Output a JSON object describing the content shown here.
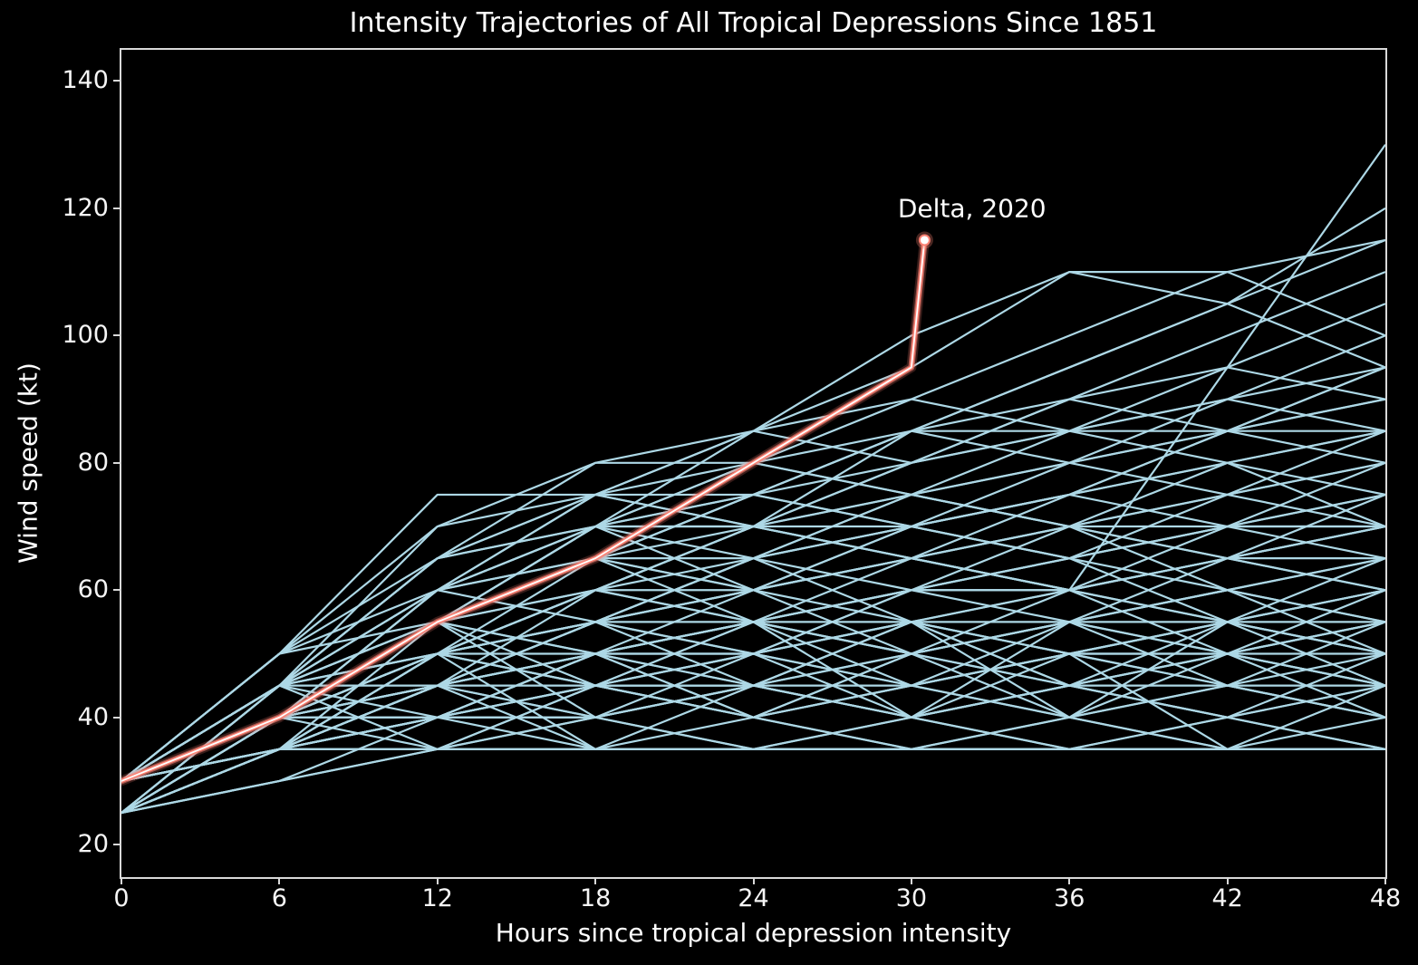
{
  "title": "Intensity Trajectories of All Tropical Depressions Since 1851",
  "chart_data": {
    "type": "line",
    "title": "Intensity Trajectories of All Tropical Depressions Since 1851",
    "xlabel": "Hours since tropical depression intensity",
    "ylabel": "Wind speed (kt)",
    "xlim": [
      0,
      48
    ],
    "ylim": [
      14.9,
      144.9
    ],
    "x_ticks": [
      0,
      6,
      12,
      18,
      24,
      30,
      36,
      42,
      48
    ],
    "y_ticks": [
      20,
      40,
      60,
      80,
      100,
      120,
      140
    ],
    "grid": false,
    "legend": "none",
    "background_color": "#000000",
    "trajectory_color": "#add8e6",
    "highlight_color": "#fa8072",
    "hours": [
      0,
      6,
      12,
      18,
      24,
      30,
      36,
      42,
      48
    ],
    "trajectories": [
      [
        30,
        35,
        35,
        35,
        35,
        35,
        35,
        35,
        35
      ],
      [
        30,
        35,
        35,
        35,
        35,
        35,
        35,
        35,
        35
      ],
      [
        25,
        30,
        35,
        35,
        35,
        35,
        35,
        35,
        35
      ],
      [
        30,
        35,
        40,
        35,
        35,
        40,
        35,
        35,
        35
      ],
      [
        30,
        40,
        35,
        40,
        35,
        35,
        40,
        35,
        40
      ],
      [
        25,
        35,
        40,
        40,
        35,
        40,
        35,
        40,
        35
      ],
      [
        30,
        35,
        40,
        45,
        40,
        35,
        40,
        45,
        40
      ],
      [
        30,
        40,
        45,
        40,
        45,
        40,
        45,
        40,
        45
      ],
      [
        25,
        35,
        45,
        45,
        40,
        45,
        40,
        45,
        45
      ],
      [
        30,
        40,
        40,
        45,
        45,
        40,
        45,
        45,
        40
      ],
      [
        30,
        35,
        45,
        50,
        45,
        40,
        45,
        50,
        45
      ],
      [
        30,
        45,
        50,
        45,
        50,
        45,
        50,
        45,
        50
      ],
      [
        25,
        35,
        40,
        50,
        50,
        45,
        50,
        50,
        45
      ],
      [
        30,
        40,
        50,
        50,
        45,
        50,
        45,
        50,
        50
      ],
      [
        30,
        35,
        45,
        55,
        50,
        55,
        50,
        55,
        50
      ],
      [
        30,
        45,
        55,
        50,
        55,
        50,
        55,
        50,
        55
      ],
      [
        25,
        40,
        50,
        55,
        55,
        50,
        55,
        55,
        60
      ],
      [
        30,
        40,
        45,
        50,
        55,
        55,
        50,
        55,
        55
      ],
      [
        30,
        35,
        50,
        60,
        55,
        60,
        55,
        60,
        55
      ],
      [
        30,
        45,
        60,
        55,
        60,
        55,
        60,
        65,
        60
      ],
      [
        25,
        40,
        55,
        60,
        60,
        65,
        60,
        55,
        60
      ],
      [
        30,
        40,
        50,
        60,
        65,
        60,
        65,
        60,
        65
      ],
      [
        30,
        35,
        55,
        65,
        60,
        65,
        60,
        65,
        70
      ],
      [
        30,
        45,
        55,
        65,
        65,
        70,
        65,
        70,
        65
      ],
      [
        25,
        40,
        60,
        65,
        70,
        65,
        70,
        65,
        70
      ],
      [
        30,
        40,
        55,
        70,
        70,
        65,
        70,
        70,
        75
      ],
      [
        30,
        50,
        65,
        70,
        75,
        70,
        65,
        70,
        70
      ],
      [
        30,
        45,
        60,
        70,
        70,
        75,
        70,
        75,
        70
      ],
      [
        25,
        45,
        65,
        75,
        70,
        70,
        75,
        70,
        75
      ],
      [
        30,
        50,
        75,
        75,
        70,
        65,
        60,
        55,
        50
      ],
      [
        30,
        45,
        70,
        80,
        80,
        75,
        70,
        65,
        60
      ],
      [
        25,
        45,
        65,
        75,
        75,
        70,
        75,
        80,
        75
      ],
      [
        30,
        50,
        70,
        75,
        80,
        75,
        80,
        75,
        80
      ],
      [
        30,
        40,
        55,
        70,
        80,
        85,
        80,
        85,
        80
      ],
      [
        30,
        45,
        60,
        75,
        85,
        80,
        85,
        80,
        85
      ],
      [
        25,
        40,
        55,
        65,
        75,
        85,
        85,
        85,
        85
      ],
      [
        30,
        40,
        55,
        70,
        75,
        85,
        90,
        85,
        90
      ],
      [
        30,
        45,
        65,
        80,
        85,
        90,
        85,
        90,
        95
      ],
      [
        30,
        40,
        55,
        70,
        85,
        95,
        110,
        110,
        100
      ],
      [
        25,
        40,
        60,
        75,
        85,
        100,
        110,
        105,
        95
      ],
      [
        30,
        45,
        60,
        70,
        80,
        90,
        100,
        110,
        115
      ],
      [
        30,
        40,
        50,
        60,
        70,
        85,
        95,
        105,
        120
      ],
      [
        30,
        35,
        45,
        60,
        70,
        80,
        90,
        100,
        110
      ],
      [
        30,
        40,
        45,
        50,
        55,
        60,
        60,
        95,
        130
      ],
      [
        30,
        40,
        55,
        65,
        75,
        85,
        95,
        105,
        115
      ],
      [
        25,
        35,
        50,
        60,
        70,
        80,
        85,
        95,
        105
      ],
      [
        30,
        45,
        55,
        60,
        70,
        75,
        85,
        90,
        100
      ],
      [
        30,
        40,
        50,
        65,
        75,
        80,
        90,
        95,
        90
      ],
      [
        25,
        35,
        45,
        55,
        65,
        75,
        80,
        85,
        95
      ],
      [
        30,
        35,
        40,
        45,
        50,
        55,
        60,
        65,
        70
      ],
      [
        25,
        30,
        35,
        40,
        45,
        50,
        55,
        60,
        65
      ],
      [
        30,
        40,
        40,
        50,
        50,
        60,
        60,
        70,
        70
      ],
      [
        25,
        35,
        35,
        45,
        45,
        55,
        55,
        65,
        65
      ],
      [
        30,
        35,
        40,
        40,
        45,
        45,
        50,
        50,
        55
      ],
      [
        30,
        40,
        45,
        55,
        60,
        50,
        45,
        40,
        35
      ],
      [
        30,
        45,
        50,
        60,
        55,
        45,
        40,
        35,
        35
      ],
      [
        25,
        40,
        50,
        45,
        40,
        35,
        35,
        40,
        45
      ],
      [
        30,
        40,
        55,
        50,
        40,
        45,
        50,
        55,
        65
      ],
      [
        30,
        50,
        60,
        65,
        55,
        50,
        60,
        65,
        75
      ],
      [
        25,
        45,
        55,
        65,
        60,
        70,
        75,
        85,
        90
      ],
      [
        30,
        35,
        50,
        55,
        65,
        70,
        80,
        90,
        85
      ],
      [
        30,
        45,
        50,
        55,
        65,
        75,
        70,
        60,
        55
      ],
      [
        25,
        35,
        45,
        50,
        60,
        65,
        75,
        80,
        70
      ],
      [
        30,
        40,
        60,
        70,
        65,
        55,
        50,
        45,
        40
      ],
      [
        30,
        35,
        45,
        50,
        55,
        65,
        60,
        50,
        45
      ],
      [
        25,
        30,
        40,
        45,
        55,
        60,
        70,
        75,
        85
      ],
      [
        30,
        40,
        50,
        55,
        65,
        70,
        75,
        85,
        95
      ],
      [
        30,
        35,
        45,
        55,
        60,
        70,
        65,
        75,
        80
      ],
      [
        25,
        35,
        40,
        50,
        55,
        60,
        65,
        70,
        80
      ],
      [
        30,
        45,
        65,
        70,
        60,
        65,
        70,
        80,
        85
      ],
      [
        30,
        40,
        50,
        55,
        50,
        60,
        65,
        55,
        60
      ],
      [
        25,
        35,
        45,
        40,
        50,
        55,
        45,
        50,
        55
      ],
      [
        30,
        40,
        55,
        40,
        45,
        55,
        40,
        50,
        40
      ],
      [
        25,
        35,
        50,
        35,
        45,
        40,
        50,
        35,
        45
      ],
      [
        30,
        35,
        50,
        45,
        55,
        40,
        55,
        45,
        55
      ],
      [
        30,
        45,
        40,
        50,
        40,
        50,
        40,
        55,
        45
      ],
      [
        25,
        45,
        35,
        45,
        50,
        40,
        45,
        55,
        50
      ],
      [
        30,
        50,
        55,
        45,
        40,
        50,
        55,
        60,
        50
      ],
      [
        30,
        45,
        45,
        55,
        45,
        55,
        45,
        40,
        50
      ],
      [
        25,
        40,
        45,
        35,
        40,
        45,
        55,
        50,
        60
      ]
    ],
    "highlight": {
      "name": "Delta, 2020",
      "label": "Delta, 2020",
      "points": [
        [
          0,
          30
        ],
        [
          6,
          40
        ],
        [
          12,
          55
        ],
        [
          18,
          65
        ],
        [
          24,
          80
        ],
        [
          30,
          95
        ],
        [
          30.5,
          115
        ]
      ],
      "label_position": [
        32.3,
        120
      ]
    }
  },
  "axes": {
    "xlabel": "Hours since tropical depression intensity",
    "ylabel": "Wind speed (kt)"
  }
}
